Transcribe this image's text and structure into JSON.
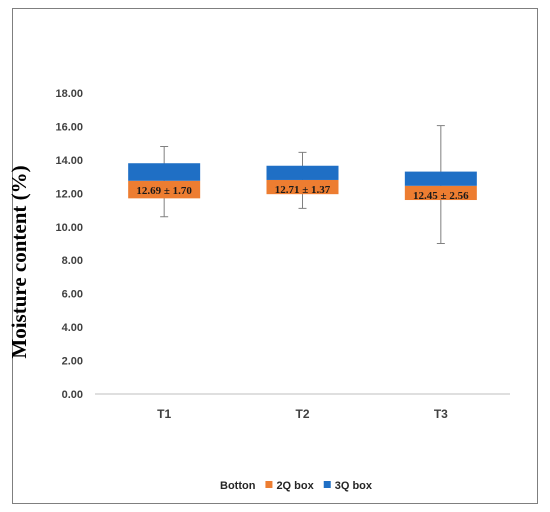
{
  "chart_data": {
    "type": "box",
    "ylabel": "Moisture content (%)",
    "xlabel": "",
    "title": "",
    "ylim": [
      0,
      18
    ],
    "yticks": [
      "0.00",
      "2.00",
      "4.00",
      "6.00",
      "8.00",
      "10.00",
      "12.00",
      "14.00",
      "16.00",
      "18.00"
    ],
    "categories": [
      "T1",
      "T2",
      "T3"
    ],
    "boxes": [
      {
        "category": "T1",
        "min": 10.6,
        "q1": 11.7,
        "median": 12.75,
        "q3": 13.8,
        "max": 14.8,
        "label": "12.69 ± 1.70"
      },
      {
        "category": "T2",
        "min": 11.1,
        "q1": 11.95,
        "median": 12.8,
        "q3": 13.65,
        "max": 14.45,
        "label": "12.71 ± 1.37"
      },
      {
        "category": "T3",
        "min": 9.0,
        "q1": 11.6,
        "median": 12.45,
        "q3": 13.3,
        "max": 16.05,
        "label": "12.45 ± 2.56"
      }
    ],
    "legend": {
      "position": "bottom",
      "items": [
        {
          "name": "Botton",
          "color": null
        },
        {
          "name": "2Q box",
          "color": "#ed7d31"
        },
        {
          "name": "3Q box",
          "color": "#1f6fc5"
        }
      ]
    },
    "colors": {
      "q2": "#ed7d31",
      "q3": "#1f6fc5",
      "whisker": "#808080",
      "axis": "#bfbfbf"
    },
    "grid": false
  }
}
